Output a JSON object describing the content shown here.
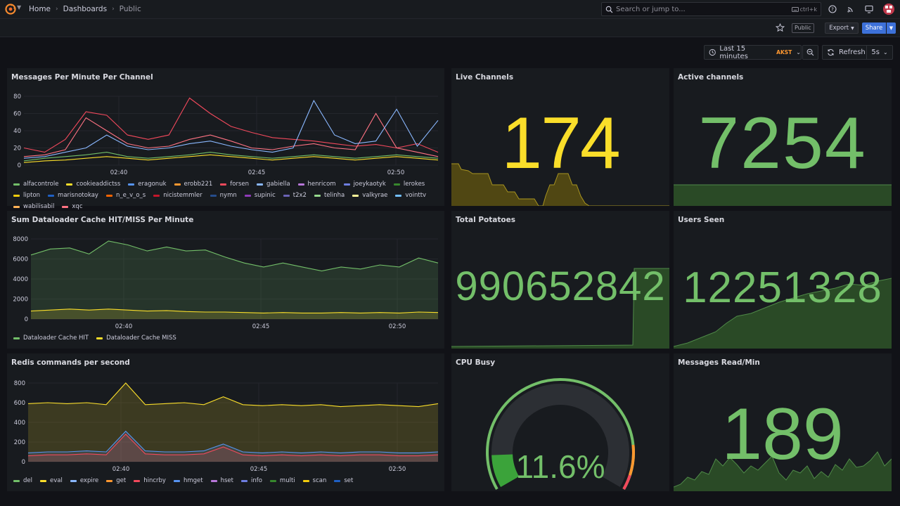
{
  "topbar": {
    "breadcrumbs": [
      "Home",
      "Dashboards",
      "Public"
    ],
    "search_placeholder": "Search or jump to...",
    "search_shortcut": "ctrl+k"
  },
  "toolbar": {
    "public_tag": "Public",
    "export_label": "Export",
    "share_label": "Share",
    "time_range": "Last 15 minutes",
    "timezone": "AKST",
    "refresh_label": "Refresh",
    "refresh_interval": "5s"
  },
  "colors": {
    "green": "#73bf69",
    "yellow": "#fade2a",
    "panel_bg": "#181b1f",
    "page_bg": "#111217",
    "accent_blue": "#3d71d9"
  },
  "panels": {
    "messages_per_minute": {
      "title": "Messages Per Minute Per Channel",
      "legend": [
        {
          "name": "alfacontrole",
          "color": "#73bf69"
        },
        {
          "name": "cookieaddictss",
          "color": "#fade2a"
        },
        {
          "name": "eragonuk",
          "color": "#5794f2"
        },
        {
          "name": "erobb221",
          "color": "#ff9830"
        },
        {
          "name": "forsen",
          "color": "#f2495c"
        },
        {
          "name": "gabiella",
          "color": "#8ab8ff"
        },
        {
          "name": "henricom",
          "color": "#b877d9"
        },
        {
          "name": "joeykaotyk",
          "color": "#6e7ee0"
        },
        {
          "name": "lerokes",
          "color": "#37872d"
        },
        {
          "name": "lipton",
          "color": "#f2cc0c"
        },
        {
          "name": "marisnotokay",
          "color": "#1f60c4"
        },
        {
          "name": "n_e_v_o_s",
          "color": "#fa6400"
        },
        {
          "name": "nicistemmler",
          "color": "#c4162a"
        },
        {
          "name": "nymn",
          "color": "#264d8c"
        },
        {
          "name": "supinic",
          "color": "#8f3bb8"
        },
        {
          "name": "t2x2",
          "color": "#6b63b5"
        },
        {
          "name": "telinha",
          "color": "#96d98d"
        },
        {
          "name": "valkyrae",
          "color": "#fff899"
        },
        {
          "name": "vointtv",
          "color": "#73bfff"
        },
        {
          "name": "wabilisabil",
          "color": "#ffb357"
        },
        {
          "name": "xqc",
          "color": "#ff7383"
        }
      ]
    },
    "live_channels": {
      "title": "Live Channels",
      "value": "174"
    },
    "active_channels": {
      "title": "Active channels",
      "value": "7254"
    },
    "dataloader": {
      "title": "Sum Dataloader Cache HIT/MISS Per Minute",
      "legend": [
        {
          "name": "Dataloader Cache HIT",
          "color": "#73bf69"
        },
        {
          "name": "Dataloader Cache MISS",
          "color": "#fade2a"
        }
      ]
    },
    "total_potatoes": {
      "title": "Total Potatoes",
      "value": "990652842"
    },
    "users_seen": {
      "title": "Users Seen",
      "value": "12251328"
    },
    "redis": {
      "title": "Redis commands per second",
      "legend": [
        {
          "name": "del",
          "color": "#73bf69"
        },
        {
          "name": "eval",
          "color": "#fade2a"
        },
        {
          "name": "expire",
          "color": "#8ab8ff"
        },
        {
          "name": "get",
          "color": "#ff9830"
        },
        {
          "name": "hincrby",
          "color": "#f2495c"
        },
        {
          "name": "hmget",
          "color": "#5794f2"
        },
        {
          "name": "hset",
          "color": "#b877d9"
        },
        {
          "name": "info",
          "color": "#6e7ee0"
        },
        {
          "name": "multi",
          "color": "#37872d"
        },
        {
          "name": "scan",
          "color": "#f2cc0c"
        },
        {
          "name": "set",
          "color": "#1f60c4"
        }
      ]
    },
    "cpu_busy": {
      "title": "CPU Busy",
      "value": "11.6%",
      "percent": 11.6
    },
    "messages_read": {
      "title": "Messages Read/Min",
      "value": "189"
    }
  },
  "chart_data": [
    {
      "type": "line",
      "title": "Messages Per Minute Per Channel",
      "ylim": [
        0,
        80
      ],
      "y_ticks": [
        "80",
        "60",
        "40",
        "20",
        "0"
      ],
      "x_ticks": [
        "02:40",
        "02:45",
        "02:50"
      ],
      "series": [
        {
          "name": "forsen",
          "values": [
            20,
            15,
            30,
            62,
            58,
            35,
            30,
            35,
            78,
            60,
            45,
            38,
            32,
            30,
            28,
            25,
            22,
            24,
            20,
            25,
            15
          ]
        },
        {
          "name": "xqc",
          "values": [
            10,
            12,
            18,
            55,
            40,
            25,
            20,
            22,
            30,
            35,
            28,
            20,
            18,
            22,
            25,
            20,
            18,
            60,
            20,
            15,
            10
          ]
        },
        {
          "name": "gabiella",
          "values": [
            8,
            10,
            15,
            20,
            35,
            22,
            18,
            20,
            25,
            28,
            22,
            18,
            15,
            20,
            75,
            35,
            25,
            28,
            65,
            22,
            52
          ]
        },
        {
          "name": "alfacontrole",
          "values": [
            5,
            8,
            10,
            12,
            15,
            10,
            8,
            10,
            12,
            15,
            12,
            10,
            8,
            10,
            12,
            10,
            8,
            10,
            12,
            10,
            8
          ]
        },
        {
          "name": "cookieaddictss",
          "values": [
            3,
            5,
            6,
            8,
            10,
            8,
            6,
            8,
            10,
            12,
            10,
            8,
            6,
            8,
            10,
            8,
            6,
            8,
            10,
            8,
            6
          ]
        }
      ]
    },
    {
      "type": "line",
      "title": "Sum Dataloader Cache HIT/MISS Per Minute",
      "ylim": [
        0,
        8000
      ],
      "y_ticks": [
        "8000",
        "6000",
        "4000",
        "2000",
        "0"
      ],
      "x_ticks": [
        "02:40",
        "02:45",
        "02:50"
      ],
      "series": [
        {
          "name": "Dataloader Cache HIT",
          "values": [
            6400,
            7000,
            7100,
            6500,
            7800,
            7400,
            6800,
            7200,
            6800,
            6900,
            6200,
            5600,
            5200,
            5600,
            5200,
            4800,
            5200,
            5000,
            5400,
            5200,
            6100,
            5600
          ]
        },
        {
          "name": "Dataloader Cache MISS",
          "values": [
            800,
            900,
            1000,
            900,
            1000,
            900,
            800,
            850,
            750,
            700,
            700,
            650,
            600,
            650,
            600,
            600,
            650,
            600,
            650,
            600,
            700,
            650
          ]
        }
      ]
    },
    {
      "type": "area",
      "title": "Redis commands per second",
      "ylim": [
        0,
        800
      ],
      "y_ticks": [
        "800",
        "600",
        "400",
        "200",
        "0"
      ],
      "x_ticks": [
        "02:40",
        "02:45",
        "02:50"
      ],
      "series": [
        {
          "name": "eval",
          "values": [
            590,
            600,
            590,
            600,
            580,
            800,
            580,
            590,
            600,
            580,
            660,
            580,
            570,
            580,
            570,
            580,
            560,
            570,
            580,
            570,
            560,
            590
          ]
        },
        {
          "name": "hmget",
          "values": [
            90,
            100,
            100,
            110,
            100,
            310,
            110,
            100,
            100,
            110,
            180,
            100,
            90,
            100,
            90,
            100,
            90,
            100,
            100,
            90,
            90,
            100
          ]
        },
        {
          "name": "hincrby",
          "values": [
            60,
            70,
            70,
            80,
            70,
            280,
            80,
            70,
            70,
            80,
            150,
            70,
            60,
            70,
            60,
            70,
            60,
            70,
            70,
            60,
            60,
            70
          ]
        }
      ]
    },
    {
      "type": "gauge",
      "title": "CPU Busy",
      "value": 11.6,
      "range": [
        0,
        100
      ]
    }
  ]
}
